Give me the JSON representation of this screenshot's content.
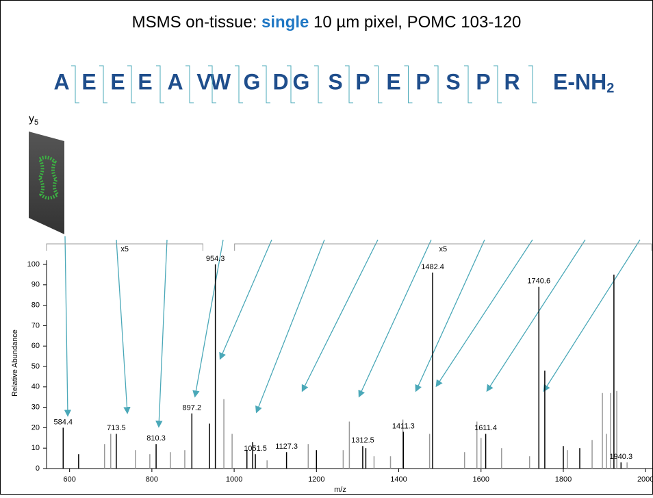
{
  "chart_data": {
    "type": "stem",
    "title": {
      "before": "MSMS on-tissue: ",
      "highlight": "single",
      "after": " 10 µm pixel, POMC 103-120"
    },
    "highlight_color": "#1f77c4",
    "sequence": [
      "A",
      "E",
      "E",
      "E",
      "A",
      "V",
      "W",
      "G",
      "D",
      "G",
      "S",
      "P",
      "E",
      "P",
      "S",
      "P",
      "R",
      "E-NH"
    ],
    "sequence_subscript": "2",
    "sequence_color": "#1f4e8c",
    "image_label": {
      "text": "y",
      "subscript": "5"
    },
    "x_label": "m/z",
    "y_label": "Relative Abundance",
    "xlim": [
      544,
      2018
    ],
    "ylim": [
      0,
      100
    ],
    "xticks": [
      600,
      800,
      1000,
      1200,
      1400,
      1600,
      1800,
      2000
    ],
    "yticks": [
      0,
      10,
      20,
      30,
      40,
      50,
      60,
      70,
      80,
      90,
      100
    ],
    "zoom_regions": [
      {
        "label": "x5",
        "range": [
          544,
          924
        ]
      },
      {
        "label": "x5",
        "range": [
          1001,
          2018
        ]
      }
    ],
    "labeled_peaks": {
      "color": "#000000",
      "x": [
        584.4,
        713.5,
        810.3,
        897.2,
        954.3,
        1051.5,
        1127.3,
        1312.5,
        1411.3,
        1482.4,
        1611.4,
        1740.6,
        1940.3
      ],
      "values": [
        20,
        17,
        12,
        27,
        100,
        7,
        8,
        11,
        18,
        96,
        17,
        89,
        3
      ]
    },
    "series": [
      {
        "color": "#000000",
        "x": [
          622,
          940,
          1031,
          1045,
          1200,
          1320,
          1755,
          1800,
          1840,
          1923
        ],
        "values": [
          7,
          22,
          9,
          13,
          9,
          10,
          48,
          11,
          10,
          95
        ]
      },
      {
        "color": "#999999",
        "x": [
          685,
          700,
          760,
          795,
          845,
          880,
          975,
          995,
          1080,
          1180,
          1265,
          1280,
          1340,
          1380,
          1410,
          1475,
          1560,
          1590,
          1600,
          1650,
          1718,
          1810,
          1870,
          1895,
          1905,
          1915,
          1930,
          1955
        ],
        "values": [
          12,
          17,
          9,
          7,
          8,
          9,
          34,
          17,
          4,
          12,
          9,
          23,
          6,
          6,
          24,
          17,
          8,
          23,
          15,
          10,
          6,
          9,
          14,
          37,
          17,
          37,
          38,
          3
        ]
      }
    ]
  }
}
